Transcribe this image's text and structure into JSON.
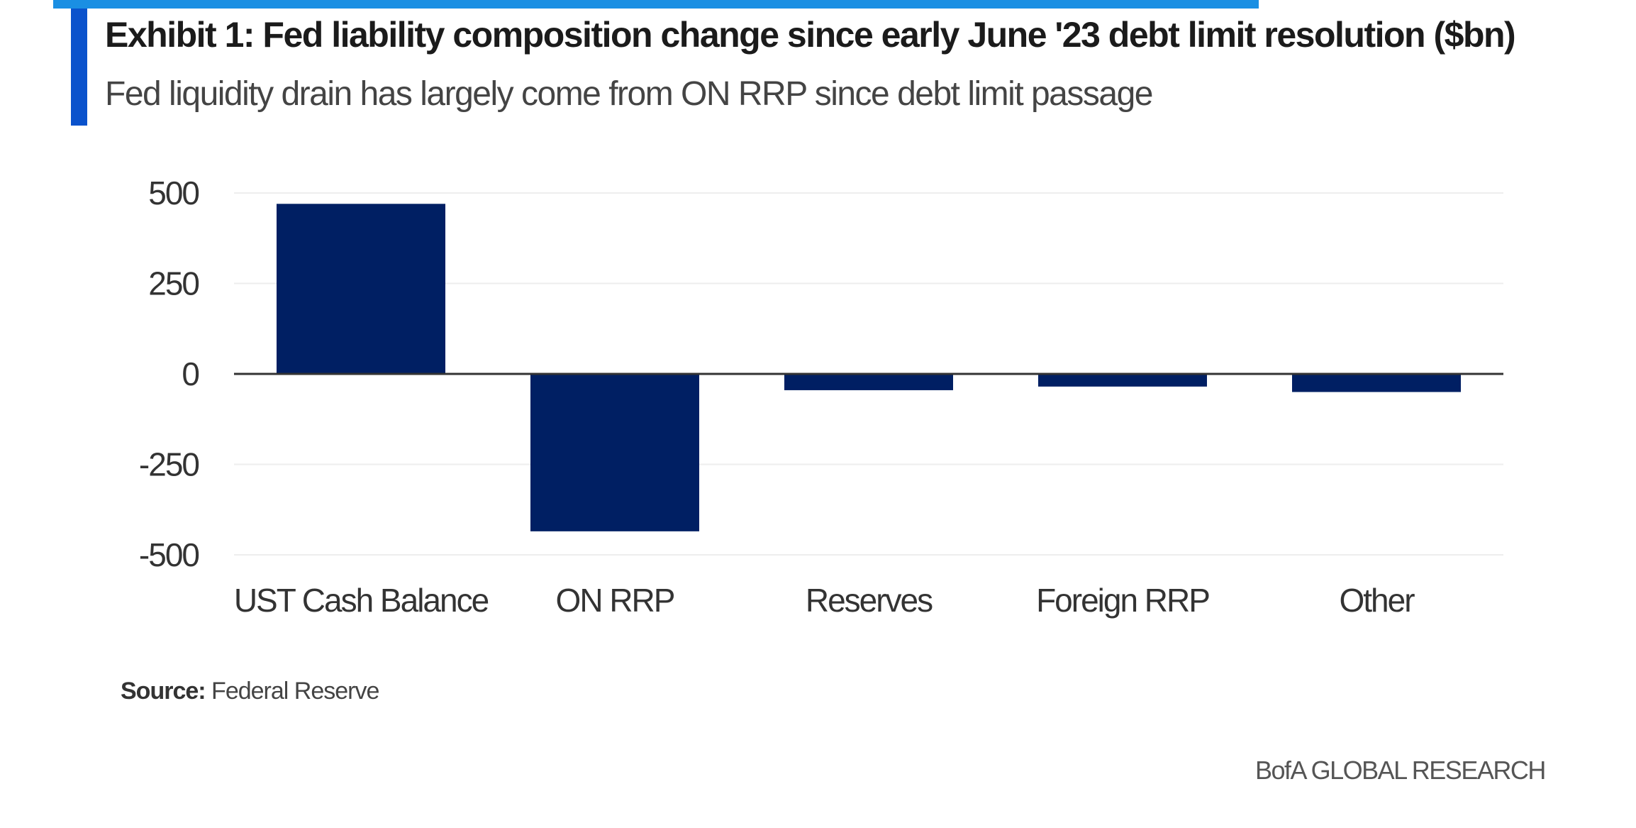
{
  "colors": {
    "accent_top": "#1a8fe3",
    "accent_side": "#0a52cc",
    "bar": "#001f63",
    "zero_line": "#333333",
    "grid": "#eeeeee"
  },
  "header": {
    "title": "Exhibit 1: Fed liability composition change since early June '23 debt limit resolution ($bn)",
    "subtitle": "Fed liquidity drain has largely come from ON RRP since debt limit passage"
  },
  "footer": {
    "source_label": "Source:",
    "source_text": "Federal Reserve",
    "brand": "BofA GLOBAL RESEARCH"
  },
  "chart_data": {
    "type": "bar",
    "categories": [
      "UST Cash Balance",
      "ON RRP",
      "Reserves",
      "Foreign RRP",
      "Other"
    ],
    "values": [
      470,
      -435,
      -45,
      -35,
      -50
    ],
    "yticks": [
      500,
      250,
      0,
      -250,
      -500
    ],
    "ytick_labels": [
      "500",
      "250",
      "0",
      "-250",
      "-500"
    ],
    "ylim": [
      -500,
      500
    ],
    "grid": true,
    "legend": "none"
  }
}
